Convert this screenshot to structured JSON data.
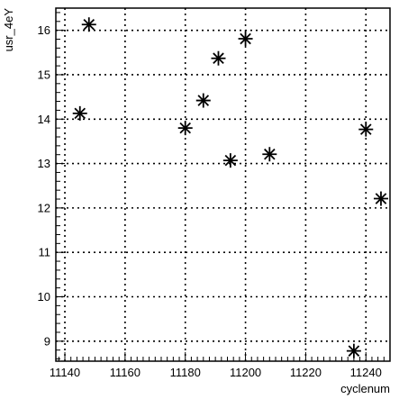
{
  "chart_data": {
    "type": "scatter",
    "title": "",
    "xlabel": "cyclenum",
    "ylabel": "usr_4eY",
    "xlim": [
      11137,
      11248
    ],
    "ylim": [
      8.55,
      16.5
    ],
    "x_ticks": [
      11140,
      11160,
      11180,
      11200,
      11220,
      11240
    ],
    "y_ticks": [
      9,
      10,
      11,
      12,
      13,
      14,
      15,
      16
    ],
    "grid": true,
    "marker": "asterisk",
    "series": [
      {
        "points": [
          {
            "x": 11145,
            "y": 14.13
          },
          {
            "x": 11148,
            "y": 16.13
          },
          {
            "x": 11180,
            "y": 13.8
          },
          {
            "x": 11186,
            "y": 14.42
          },
          {
            "x": 11191,
            "y": 15.37
          },
          {
            "x": 11195,
            "y": 13.07
          },
          {
            "x": 11200,
            "y": 15.81
          },
          {
            "x": 11208,
            "y": 13.21
          },
          {
            "x": 11236,
            "y": 8.78
          },
          {
            "x": 11240,
            "y": 13.77
          },
          {
            "x": 11245,
            "y": 12.21
          }
        ]
      }
    ]
  }
}
